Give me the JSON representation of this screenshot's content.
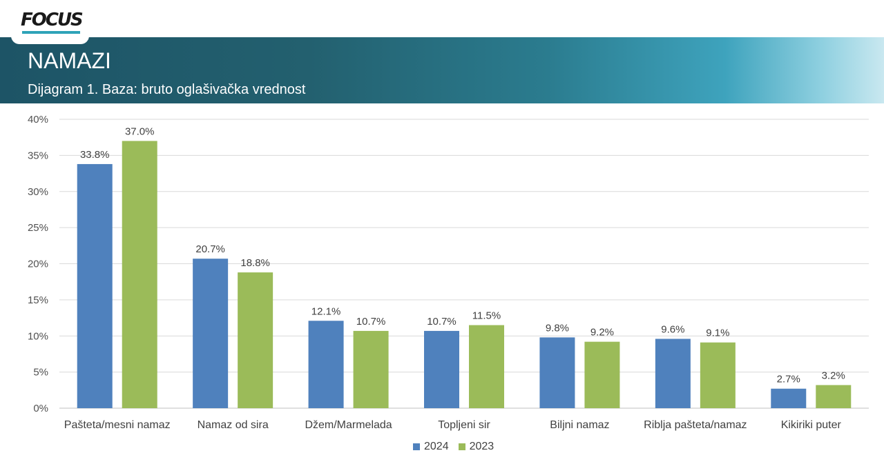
{
  "brand": {
    "logo_text": "FOCUS"
  },
  "header": {
    "title": "NAMAZI",
    "subtitle": "Dijagram 1. Baza: bruto oglašivačka vrednost"
  },
  "chart_data": {
    "type": "bar",
    "title": "",
    "xlabel": "",
    "ylabel": "",
    "ylim": [
      0,
      40
    ],
    "yticks": [
      "0%",
      "5%",
      "10%",
      "15%",
      "20%",
      "25%",
      "30%",
      "35%",
      "40%"
    ],
    "grid": true,
    "legend_position": "bottom",
    "categories": [
      "Pašteta/mesni namaz",
      "Namaz od sira",
      "Džem/Marmelada",
      "Topljeni sir",
      "Biljni namaz",
      "Riblja pašteta/namaz",
      "Kikiriki puter"
    ],
    "series": [
      {
        "name": "2024",
        "color": "#4f81bd",
        "values": [
          33.8,
          20.7,
          12.1,
          10.7,
          9.8,
          9.6,
          2.7
        ],
        "labels": [
          "33.8%",
          "20.7%",
          "12.1%",
          "10.7%",
          "9.8%",
          "9.6%",
          "2.7%"
        ]
      },
      {
        "name": "2023",
        "color": "#9bbb59",
        "values": [
          37.0,
          18.8,
          10.7,
          11.5,
          9.2,
          9.1,
          3.2
        ],
        "labels": [
          "37.0%",
          "18.8%",
          "10.7%",
          "11.5%",
          "9.2%",
          "9.1%",
          "3.2%"
        ]
      }
    ]
  }
}
